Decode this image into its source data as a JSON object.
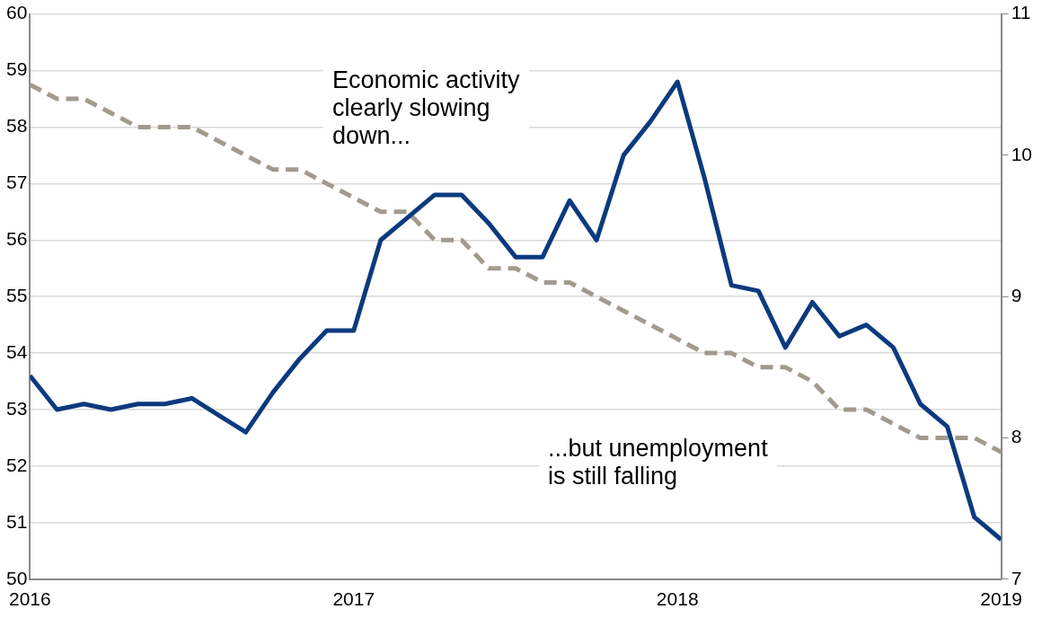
{
  "chart_data": {
    "type": "line",
    "x": [
      "2016-01",
      "2016-02",
      "2016-03",
      "2016-04",
      "2016-05",
      "2016-06",
      "2016-07",
      "2016-08",
      "2016-09",
      "2016-10",
      "2016-11",
      "2016-12",
      "2017-01",
      "2017-02",
      "2017-03",
      "2017-04",
      "2017-05",
      "2017-06",
      "2017-07",
      "2017-08",
      "2017-09",
      "2017-10",
      "2017-11",
      "2017-12",
      "2018-01",
      "2018-02",
      "2018-03",
      "2018-04",
      "2018-05",
      "2018-06",
      "2018-07",
      "2018-08",
      "2018-09",
      "2018-10",
      "2018-11",
      "2018-12",
      "2019-01"
    ],
    "series": [
      {
        "color": "#0b3a7e",
        "line_style": "solid",
        "values": [
          53.6,
          53.0,
          53.1,
          53.0,
          53.1,
          53.1,
          53.2,
          52.9,
          52.6,
          53.3,
          53.9,
          54.4,
          54.4,
          56.0,
          56.4,
          56.8,
          56.8,
          56.3,
          55.7,
          55.7,
          56.7,
          56.0,
          57.5,
          58.1,
          58.8,
          57.1,
          55.2,
          55.1,
          54.1,
          54.9,
          54.3,
          54.5,
          54.1,
          53.1,
          52.7,
          51.1,
          50.7
        ]
      },
      {
        "color": "#a29a8e",
        "line_style": "dashed",
        "axis": "y2",
        "values": [
          10.5,
          10.4,
          10.4,
          10.3,
          10.2,
          10.2,
          10.2,
          10.1,
          10.0,
          9.9,
          9.9,
          9.8,
          9.7,
          9.6,
          9.6,
          9.4,
          9.4,
          9.2,
          9.2,
          9.1,
          9.1,
          9.0,
          8.9,
          8.8,
          8.7,
          8.6,
          8.6,
          8.5,
          8.5,
          8.4,
          8.2,
          8.2,
          8.1,
          8.0,
          8.0,
          8.0,
          7.9
        ]
      }
    ],
    "xlim": [
      "2016",
      "2019"
    ],
    "xticks": [
      "2016",
      "2017",
      "2018",
      "2019"
    ],
    "ylim": [
      50,
      60
    ],
    "yticks": [
      50,
      51,
      52,
      53,
      54,
      55,
      56,
      57,
      58,
      59,
      60
    ],
    "y2lim": [
      7,
      11
    ],
    "y2ticks": [
      7,
      8,
      9,
      10,
      11
    ],
    "grid": "y",
    "legend": false,
    "marker": "none",
    "annotations": [
      "Economic activity\nclearly slowing\ndown...",
      "...but unemployment\nis still falling"
    ]
  }
}
